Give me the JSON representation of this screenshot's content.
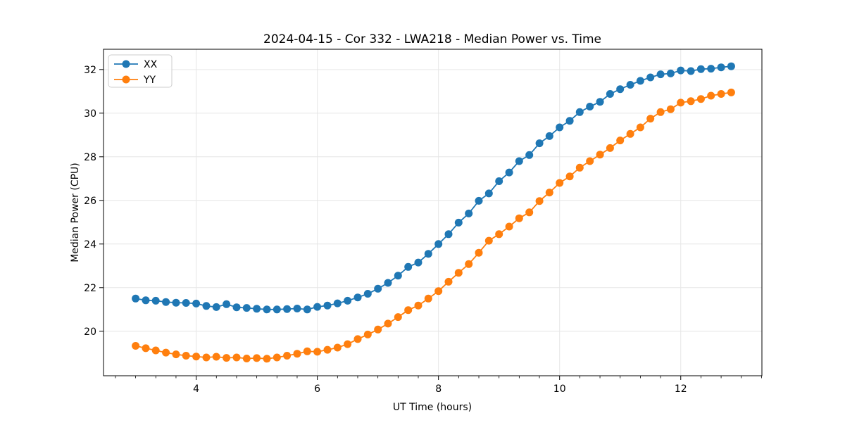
{
  "chart_data": {
    "type": "line",
    "title": "2024-04-15 - Cor 332 - LWA218 - Median Power vs. Time",
    "xlabel": "UT Time (hours)",
    "ylabel": "Median Power (CPU)",
    "xlim": [
      2.47,
      13.34
    ],
    "ylim": [
      17.96,
      32.93
    ],
    "x_major_ticks": [
      4,
      6,
      8,
      10,
      12
    ],
    "x_minor_step": 0.3333333,
    "y_major_ticks": [
      20,
      22,
      24,
      26,
      28,
      30,
      32
    ],
    "grid": true,
    "legend_position": "upper-left",
    "x": [
      3.0,
      3.167,
      3.333,
      3.5,
      3.667,
      3.833,
      4.0,
      4.167,
      4.333,
      4.5,
      4.667,
      4.833,
      5.0,
      5.167,
      5.333,
      5.5,
      5.667,
      5.833,
      6.0,
      6.167,
      6.333,
      6.5,
      6.667,
      6.833,
      7.0,
      7.167,
      7.333,
      7.5,
      7.667,
      7.833,
      8.0,
      8.167,
      8.333,
      8.5,
      8.667,
      8.833,
      9.0,
      9.167,
      9.333,
      9.5,
      9.667,
      9.833,
      10.0,
      10.167,
      10.333,
      10.5,
      10.667,
      10.833,
      11.0,
      11.167,
      11.333,
      11.5,
      11.667,
      11.833,
      12.0,
      12.167,
      12.333,
      12.5,
      12.667,
      12.833
    ],
    "series": [
      {
        "name": "XX",
        "color": "#1f77b4",
        "values": [
          21.5,
          21.42,
          21.4,
          21.34,
          21.31,
          21.3,
          21.27,
          21.16,
          21.11,
          21.24,
          21.1,
          21.07,
          21.03,
          21.0,
          21.0,
          21.02,
          21.04,
          21.0,
          21.12,
          21.18,
          21.28,
          21.4,
          21.55,
          21.72,
          21.95,
          22.22,
          22.55,
          22.95,
          23.15,
          23.55,
          24.0,
          24.45,
          24.98,
          25.4,
          25.98,
          26.32,
          26.88,
          27.28,
          27.8,
          28.08,
          28.62,
          28.95,
          29.35,
          29.65,
          30.05,
          30.3,
          30.52,
          30.88,
          31.1,
          31.3,
          31.48,
          31.64,
          31.78,
          31.82,
          31.96,
          31.93,
          32.02,
          32.04,
          32.1,
          32.15
        ]
      },
      {
        "name": "YY",
        "color": "#ff7f0e",
        "values": [
          19.33,
          19.22,
          19.12,
          19.02,
          18.94,
          18.88,
          18.84,
          18.8,
          18.83,
          18.78,
          18.8,
          18.75,
          18.77,
          18.74,
          18.8,
          18.88,
          18.97,
          19.08,
          19.06,
          19.15,
          19.25,
          19.41,
          19.64,
          19.85,
          20.08,
          20.35,
          20.65,
          20.97,
          21.18,
          21.5,
          21.84,
          22.27,
          22.68,
          23.08,
          23.6,
          24.15,
          24.45,
          24.8,
          25.18,
          25.45,
          25.97,
          26.36,
          26.8,
          27.1,
          27.5,
          27.8,
          28.1,
          28.4,
          28.75,
          29.05,
          29.35,
          29.75,
          30.05,
          30.18,
          30.48,
          30.55,
          30.65,
          30.8,
          30.88,
          30.95
        ]
      }
    ],
    "style": {
      "background": "#ffffff",
      "grid_color": "#e6e6e6",
      "spine_color": "#000000",
      "marker_radius": 5.5,
      "line_width": 1.8,
      "legend_border": "#cccccc"
    }
  }
}
